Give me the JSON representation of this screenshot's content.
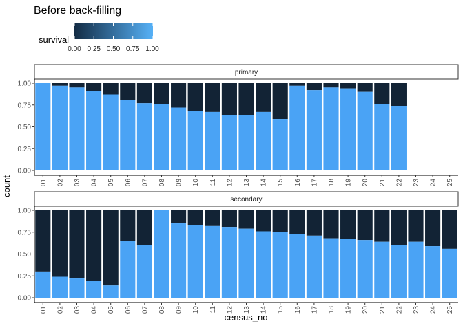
{
  "chart_data": {
    "type": "bar",
    "title": "Before back-filling",
    "xlabel": "census_no",
    "ylabel": "count",
    "ylim": [
      0,
      1
    ],
    "y_ticks": [
      "0.00",
      "0.25",
      "0.50",
      "0.75",
      "1.00"
    ],
    "legend": {
      "title": "survival",
      "placement": "top-left",
      "ticks": [
        "0.00",
        "0.25",
        "0.50",
        "0.75",
        "1.00"
      ],
      "low_color": "#132B43",
      "high_color": "#56B1F7"
    },
    "colors": {
      "survived": "#4AA3F5",
      "not_survived": "#122335"
    },
    "categories": [
      "01",
      "02",
      "03",
      "04",
      "05",
      "06",
      "07",
      "08",
      "09",
      "10",
      "11",
      "12",
      "13",
      "14",
      "15",
      "16",
      "17",
      "18",
      "19",
      "20",
      "21",
      "22",
      "23",
      "24",
      "25"
    ],
    "panels": [
      {
        "name": "primary",
        "values": [
          1.0,
          0.97,
          0.95,
          0.91,
          0.87,
          0.81,
          0.77,
          0.76,
          0.72,
          0.68,
          0.67,
          0.63,
          0.63,
          0.67,
          0.59,
          0.97,
          0.92,
          0.95,
          0.94,
          0.9,
          0.76,
          0.74,
          null,
          null,
          null
        ]
      },
      {
        "name": "secondary",
        "values": [
          0.3,
          0.24,
          0.22,
          0.19,
          0.14,
          0.65,
          0.6,
          1.0,
          0.85,
          0.83,
          0.82,
          0.81,
          0.79,
          0.76,
          0.75,
          0.73,
          0.71,
          0.68,
          0.67,
          0.66,
          0.64,
          0.6,
          0.64,
          0.59,
          0.56
        ]
      }
    ]
  }
}
